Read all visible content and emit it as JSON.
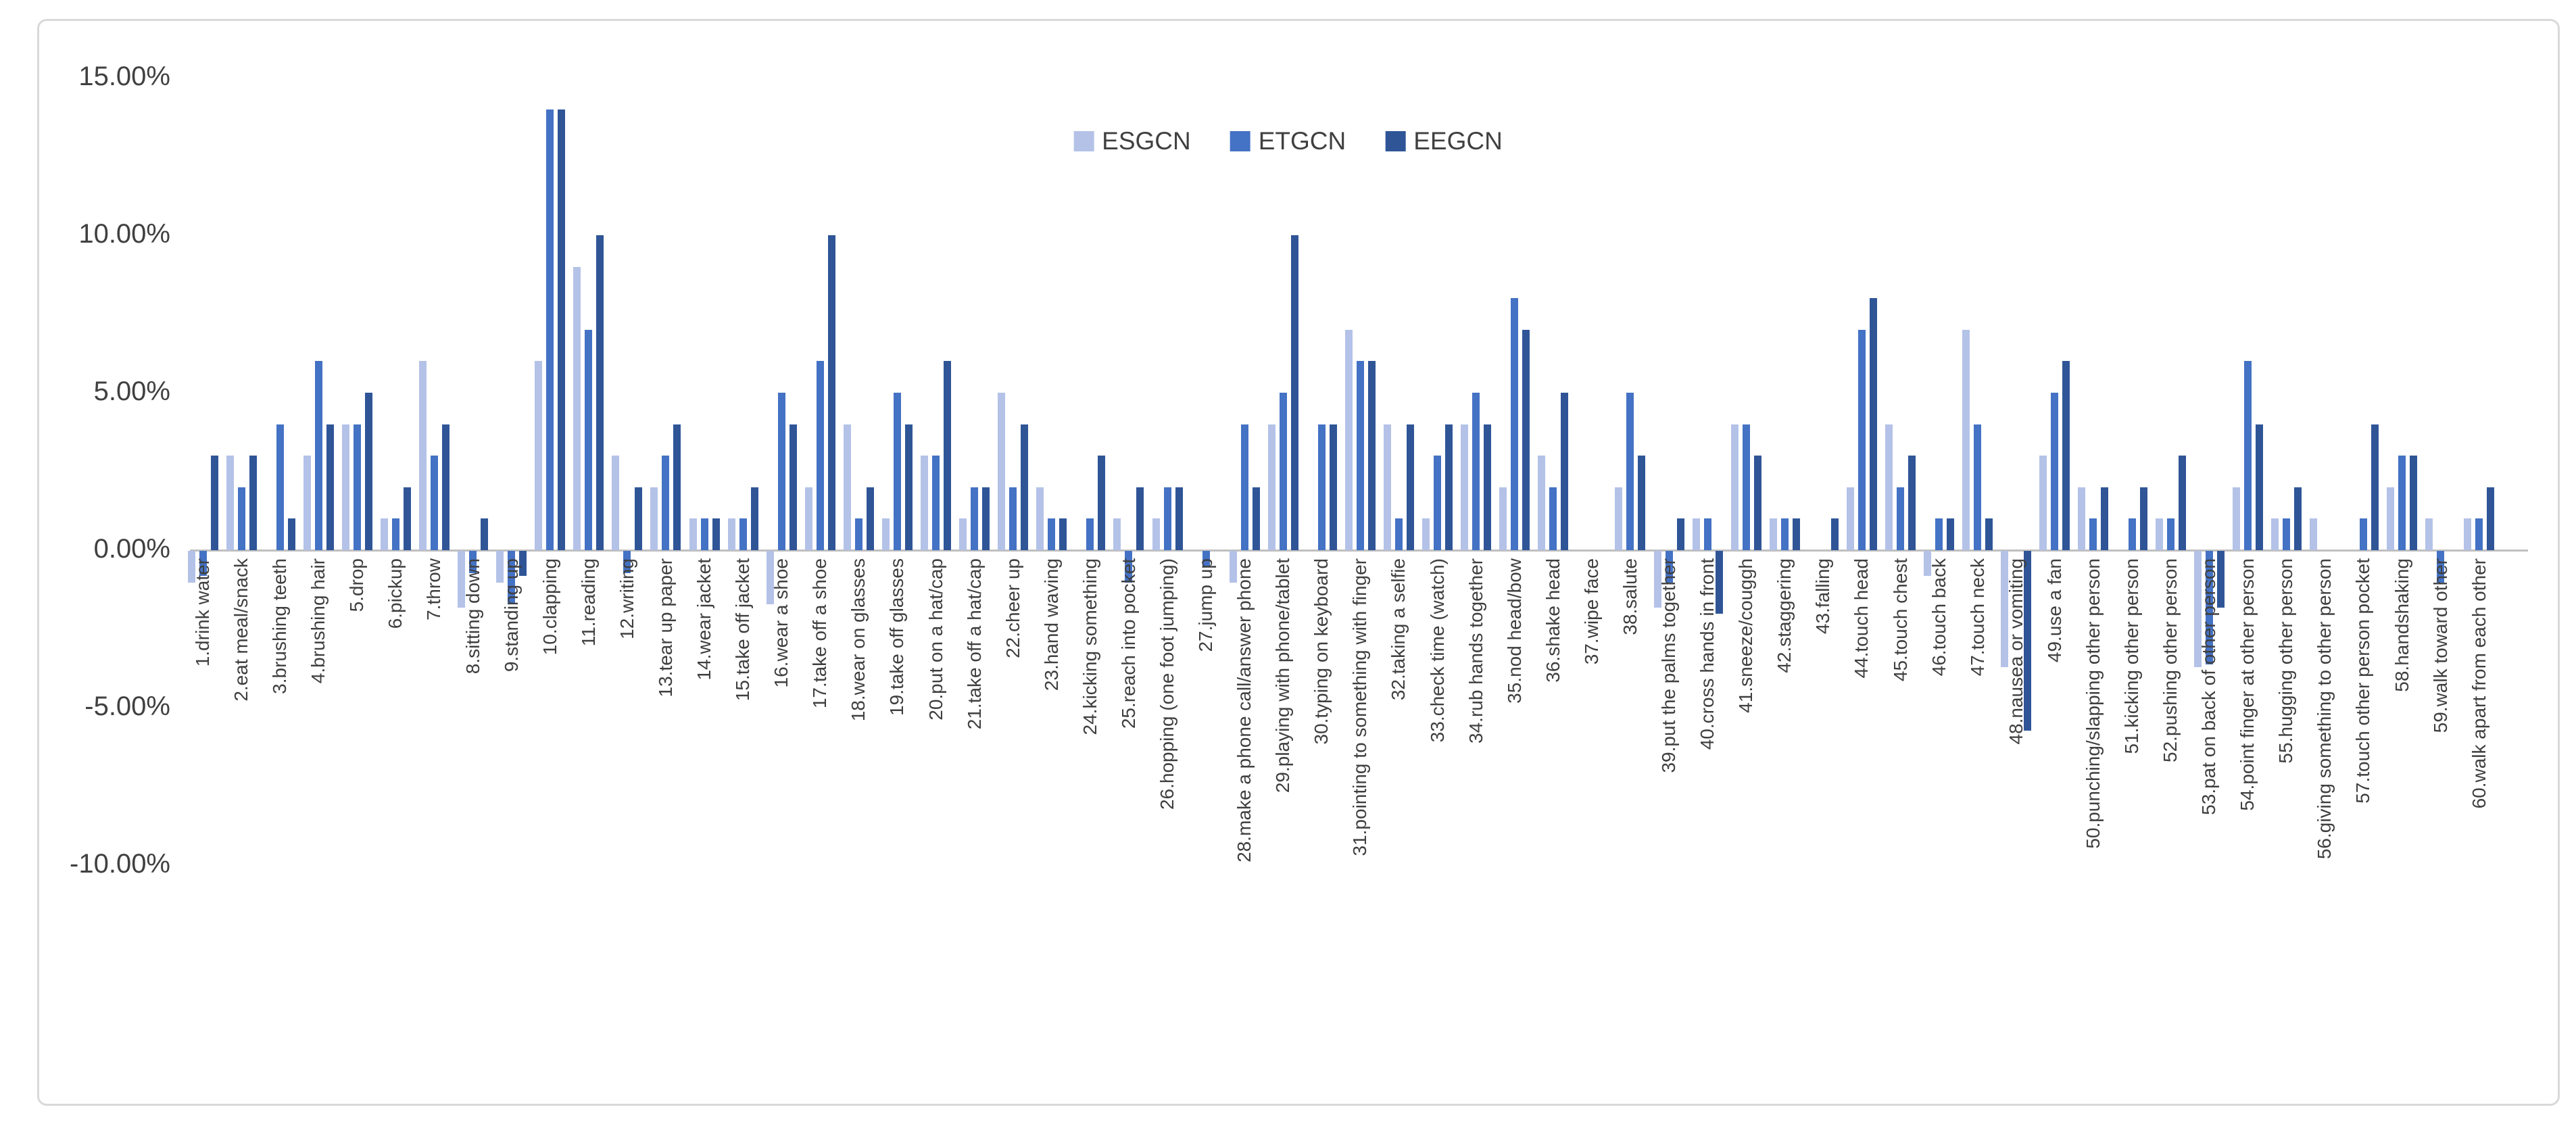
{
  "chart_data": {
    "type": "bar",
    "title": "",
    "xlabel": "",
    "ylabel": "",
    "unit": "%",
    "grid": false,
    "legend_position": "top-center",
    "y_axis": {
      "ticks": [
        "15.00%",
        "10.00%",
        "5.00%",
        "0.00%",
        "-5.00%",
        "-10.00%"
      ],
      "tick_values": [
        15,
        10,
        5,
        0,
        -5,
        -10
      ],
      "ylim": [
        -12.5,
        16
      ]
    },
    "categories": [
      "1.drink water",
      "2.eat meal/snack",
      "3.brushing teeth",
      "4.brushing hair",
      "5.drop",
      "6.pickup",
      "7.throw",
      "8.sitting down",
      "9.standing up",
      "10.clapping",
      "11.reading",
      "12.writing",
      "13.tear up paper",
      "14.wear jacket",
      "15.take off jacket",
      "16.wear a shoe",
      "17.take off a shoe",
      "18.wear on glasses",
      "19.take off glasses",
      "20.put on a hat/cap",
      "21.take off a hat/cap",
      "22.cheer up",
      "23.hand waving",
      "24.kicking something",
      "25.reach into pocket",
      "26.hopping (one foot jumping)",
      "27.jump up",
      "28.make a phone call/answer phone",
      "29.playing with phone/tablet",
      "30.typing on keyboard",
      "31.pointing to something with finger",
      "32.taking a selfie",
      "33.check time (watch)",
      "34.rub hands together",
      "35.nod head/bow",
      "36.shake head",
      "37.wipe face",
      "38.salute",
      "39.put the palms together",
      "40.cross hands in front",
      "41.sneeze/couggh",
      "42.staggering",
      "43.falling",
      "44.touch head",
      "45.touch chest",
      "46.touch back",
      "47.touch neck",
      "48.nausea or vomiting",
      "49.use a fan",
      "50.punching/slapping other person",
      "51.kicking other person",
      "52.pushing other person",
      "53.pat on back of other person",
      "54.point finger at other person",
      "55.hugging other person",
      "56.giving something to other person",
      "57.touch other person pocket",
      "58.handshaking",
      "59.walk toward other",
      "60.walk apart from each other"
    ],
    "series": [
      {
        "name": "ESGCN",
        "color": "#b4c2e8",
        "values": [
          -1,
          3,
          0,
          3,
          4,
          1,
          6,
          -1.8,
          -1,
          6,
          9,
          3,
          2,
          1,
          1,
          -1.7,
          2,
          4,
          1,
          3,
          1,
          5,
          2,
          0,
          1,
          1,
          0,
          -1,
          4,
          0,
          7,
          4,
          1,
          4,
          2,
          3,
          0,
          2,
          -1.8,
          1,
          4,
          1,
          0,
          2,
          4,
          -0.8,
          7,
          -3.7,
          3,
          2,
          0,
          1,
          -3.7,
          2,
          1,
          1,
          0,
          2,
          1,
          1
        ]
      },
      {
        "name": "ETGCN",
        "color": "#4472c4",
        "values": [
          -0.8,
          2,
          4,
          6,
          4,
          1,
          3,
          -0.7,
          -1.7,
          14,
          7,
          -0.7,
          3,
          1,
          1,
          5,
          6,
          1,
          5,
          3,
          2,
          2,
          1,
          1,
          -1,
          2,
          -0.5,
          4,
          5,
          4,
          6,
          1,
          3,
          5,
          8,
          2,
          0,
          5,
          -1,
          1,
          4,
          1,
          0,
          7,
          2,
          1,
          4,
          0,
          5,
          1,
          1,
          1,
          -3.6,
          6,
          1,
          0,
          1,
          3,
          -1,
          1
        ]
      },
      {
        "name": "EEGCN",
        "color": "#2f5597",
        "values": [
          3,
          3,
          1,
          4,
          5,
          2,
          4,
          1,
          -0.8,
          14,
          10,
          2,
          4,
          1,
          2,
          4,
          10,
          2,
          4,
          6,
          2,
          4,
          1,
          3,
          2,
          2,
          0,
          2,
          10,
          4,
          6,
          4,
          4,
          4,
          7,
          5,
          0,
          3,
          1,
          -2,
          3,
          1,
          1,
          8,
          3,
          1,
          1,
          -5.7,
          6,
          2,
          2,
          3,
          -1.8,
          4,
          2,
          0,
          4,
          3,
          0,
          2
        ]
      }
    ]
  }
}
